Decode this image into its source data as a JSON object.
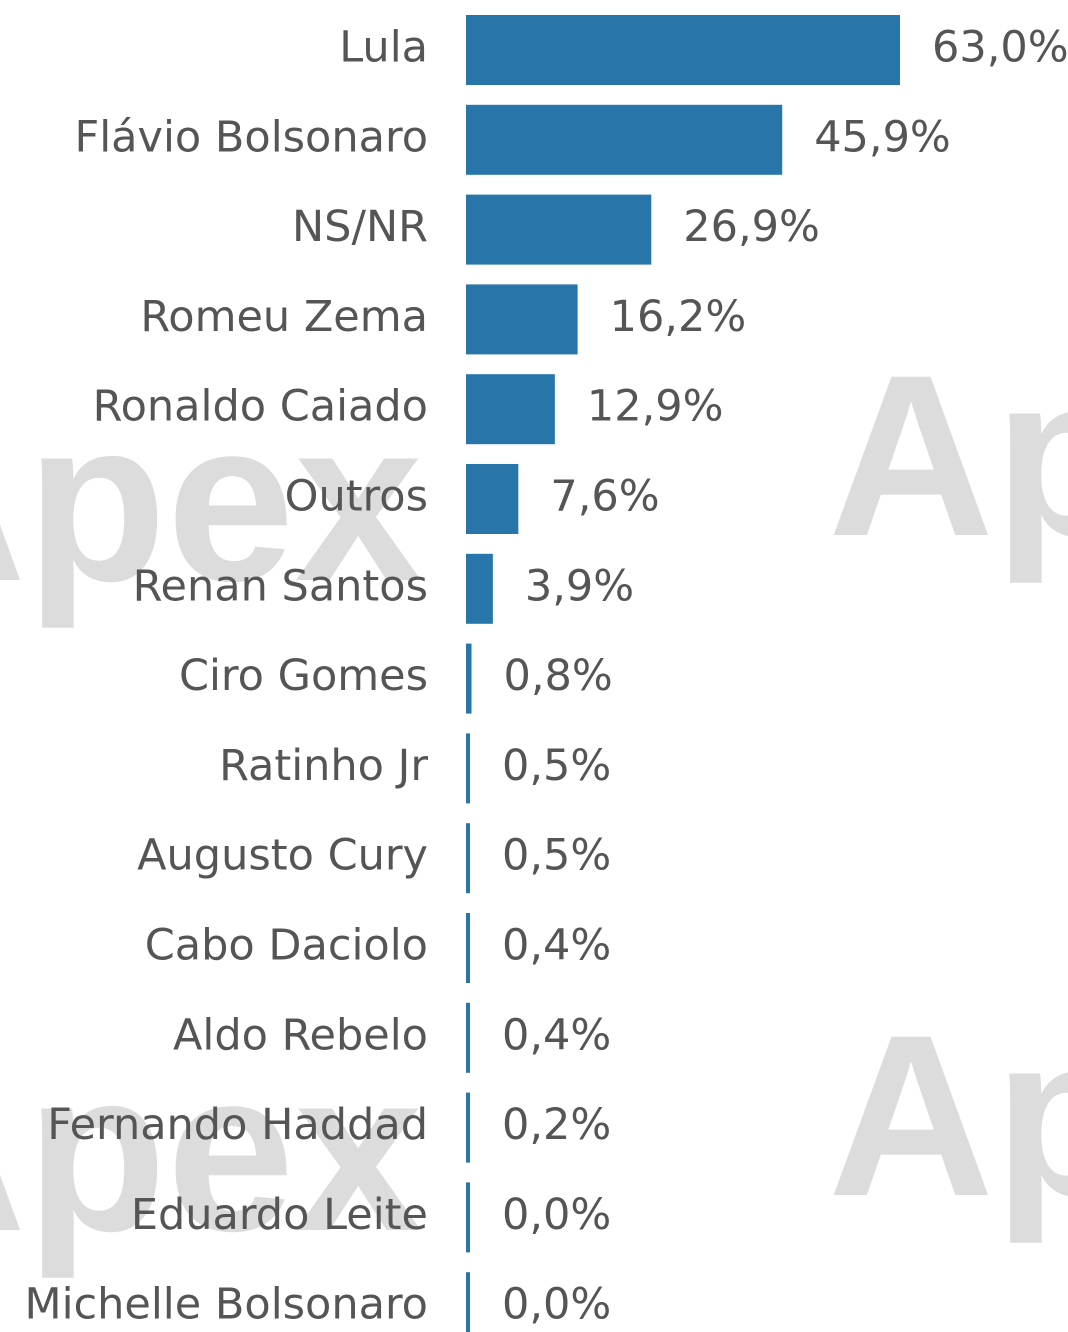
{
  "chart_data": {
    "type": "barh",
    "watermark": "Apex",
    "categories": [
      "Lula",
      "Flávio Bolsonaro",
      "NS/NR",
      "Romeu Zema",
      "Ronaldo Caiado",
      "Outros",
      "Renan Santos",
      "Ciro Gomes",
      "Ratinho Jr",
      "Augusto Cury",
      "Cabo Daciolo",
      "Aldo Rebelo",
      "Fernando Haddad",
      "Eduardo Leite",
      "Michelle Bolsonaro"
    ],
    "values": [
      63.0,
      45.9,
      26.9,
      16.2,
      12.9,
      7.6,
      3.9,
      0.8,
      0.5,
      0.5,
      0.4,
      0.4,
      0.2,
      0.0,
      0.0
    ],
    "value_labels": [
      "63,0%",
      "45,9%",
      "26,9%",
      "16,2%",
      "12,9%",
      "7,6%",
      "3,9%",
      "0,8%",
      "0,5%",
      "0,5%",
      "0,4%",
      "0,4%",
      "0,2%",
      "0,0%",
      "0,0%"
    ],
    "color": "#2876a9",
    "xlim": [
      0,
      63
    ]
  }
}
